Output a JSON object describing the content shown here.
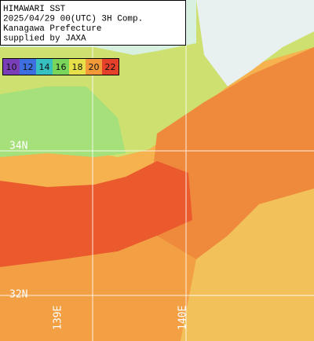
{
  "header": {
    "lines": [
      "HIMAWARI SST",
      "2025/04/29 00(UTC) 3H Comp.",
      "Kanagawa Prefecture",
      "supplied by JAXA"
    ]
  },
  "legend": {
    "items": [
      {
        "label": "10",
        "color": "#7a3fb8"
      },
      {
        "label": "12",
        "color": "#3d6fe0"
      },
      {
        "label": "14",
        "color": "#36c0c0"
      },
      {
        "label": "16",
        "color": "#7ad65a"
      },
      {
        "label": "18",
        "color": "#e8e04a"
      },
      {
        "label": "20",
        "color": "#f29a38"
      },
      {
        "label": "22",
        "color": "#e5402a"
      }
    ]
  },
  "grid_labels": {
    "lat": [
      "34N",
      "32N"
    ],
    "lon": [
      "139E",
      "140E"
    ]
  }
}
